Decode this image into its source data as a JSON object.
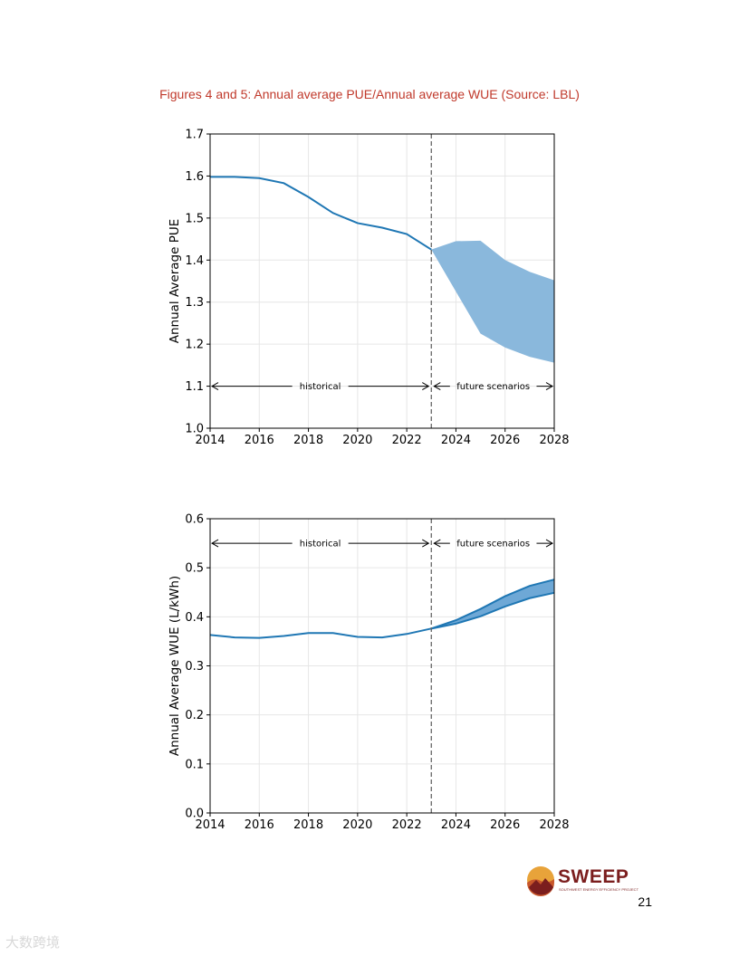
{
  "figure_title": "Figures 4 and 5: Annual average PUE/Annual average WUE (Source: LBL)",
  "chart_data": [
    {
      "type": "line",
      "ylabel": "Annual Average PUE",
      "xlabel": "",
      "xlim": [
        2014,
        2028
      ],
      "ylim": [
        1.0,
        1.7
      ],
      "x_ticks": [
        "2014",
        "2016",
        "2018",
        "2020",
        "2022",
        "2024",
        "2026",
        "2028"
      ],
      "y_ticks": [
        "1.0",
        "1.1",
        "1.2",
        "1.3",
        "1.4",
        "1.5",
        "1.6",
        "1.7"
      ],
      "grid": true,
      "divider_x": 2023,
      "line_color": "#1f77b4",
      "band_color": "#8ab8dc",
      "historical": {
        "x": [
          2014,
          2015,
          2016,
          2017,
          2018,
          2019,
          2020,
          2021,
          2022,
          2023
        ],
        "y": [
          1.598,
          1.598,
          1.595,
          1.583,
          1.55,
          1.512,
          1.488,
          1.477,
          1.462,
          1.425
        ]
      },
      "scenario_band": {
        "x": [
          2023,
          2024,
          2025,
          2026,
          2027,
          2028
        ],
        "upper": [
          1.425,
          1.445,
          1.446,
          1.4,
          1.372,
          1.352
        ],
        "lower": [
          1.425,
          1.325,
          1.225,
          1.192,
          1.17,
          1.156
        ]
      },
      "annotations": {
        "historical": "historical",
        "future": "future scenarios",
        "arrow_y": 1.1
      }
    },
    {
      "type": "line",
      "ylabel": "Annual Average WUE (L/kWh)",
      "xlabel": "",
      "xlim": [
        2014,
        2028
      ],
      "ylim": [
        0.0,
        0.6
      ],
      "x_ticks": [
        "2014",
        "2016",
        "2018",
        "2020",
        "2022",
        "2024",
        "2026",
        "2028"
      ],
      "y_ticks": [
        "0.0",
        "0.1",
        "0.2",
        "0.3",
        "0.4",
        "0.5",
        "0.6"
      ],
      "grid": true,
      "divider_x": 2023,
      "line_color": "#1f77b4",
      "band_color": "#6ea8d6",
      "historical": {
        "x": [
          2014,
          2015,
          2016,
          2017,
          2018,
          2019,
          2020,
          2021,
          2022,
          2023
        ],
        "y": [
          0.363,
          0.358,
          0.357,
          0.361,
          0.367,
          0.367,
          0.359,
          0.358,
          0.365,
          0.376
        ]
      },
      "scenario_band": {
        "x": [
          2023,
          2024,
          2025,
          2026,
          2027,
          2028
        ],
        "upper": [
          0.376,
          0.393,
          0.416,
          0.442,
          0.463,
          0.476
        ],
        "lower": [
          0.376,
          0.386,
          0.401,
          0.421,
          0.438,
          0.449
        ]
      },
      "annotations": {
        "historical": "historical",
        "future": "future scenarios",
        "arrow_y": 0.55
      }
    }
  ],
  "logo": {
    "name": "SWEEP",
    "subtitle": "SOUTHWEST ENERGY EFFICIENCY PROJECT"
  },
  "page_number": "21",
  "watermark": "大数跨境"
}
